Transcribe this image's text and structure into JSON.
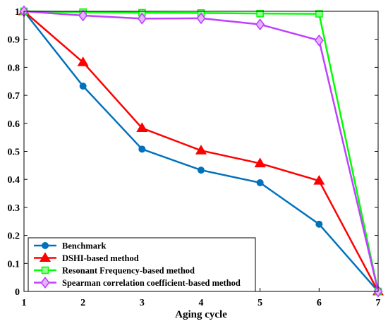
{
  "chart_data": {
    "type": "line",
    "title": "",
    "xlabel": "Aging cycle",
    "ylabel": "",
    "x": [
      1,
      2,
      3,
      4,
      5,
      6,
      7
    ],
    "xlim": [
      1,
      7
    ],
    "ylim": [
      0,
      1
    ],
    "xticks": [
      "1",
      "2",
      "3",
      "4",
      "5",
      "6",
      "7"
    ],
    "yticks": [
      "0",
      "0.1",
      "0.2",
      "0.3",
      "0.4",
      "0.5",
      "0.6",
      "0.7",
      "0.8",
      "0.9",
      "1"
    ],
    "grid": false,
    "legend_position": "bottom-left",
    "series": [
      {
        "name": "Benchmark",
        "color": "#0072BD",
        "marker": "circle",
        "values": [
          1.0,
          0.733,
          0.508,
          0.433,
          0.388,
          0.24,
          0.0
        ]
      },
      {
        "name": "DSHI-based method",
        "color": "#FF0000",
        "marker": "triangle",
        "values": [
          1.0,
          0.818,
          0.583,
          0.503,
          0.457,
          0.395,
          0.0
        ]
      },
      {
        "name": "Resonant Frequency-based method",
        "color": "#00FF00",
        "marker": "square",
        "values": [
          1.0,
          0.997,
          0.995,
          0.994,
          0.992,
          0.991,
          0.0
        ]
      },
      {
        "name": "Spearman correlation coefficient-based method",
        "color": "#BF40FF",
        "marker": "diamond",
        "values": [
          1.0,
          0.985,
          0.974,
          0.975,
          0.953,
          0.896,
          0.0
        ]
      }
    ]
  }
}
